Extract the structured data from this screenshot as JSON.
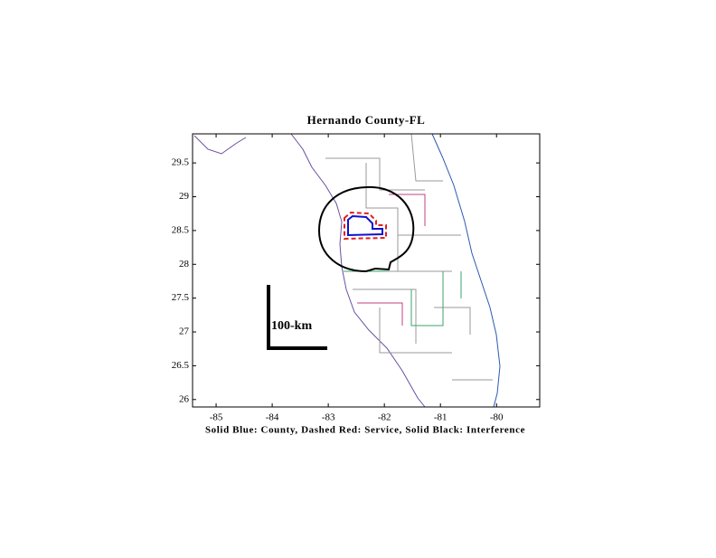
{
  "chart_data": {
    "type": "map",
    "title": "Hernando County-FL",
    "xlabel": "Solid Blue: County, Dashed Red: Service, Solid Black: Interference",
    "scale_label": "100-km",
    "xlim": [
      -85.42,
      -79.23
    ],
    "ylim": [
      25.89,
      29.93
    ],
    "xticks": [
      -85,
      -84,
      -83,
      -82,
      -81,
      -80
    ],
    "yticks": [
      26,
      26.5,
      27,
      27.5,
      28,
      28.5,
      29,
      29.5
    ]
  }
}
